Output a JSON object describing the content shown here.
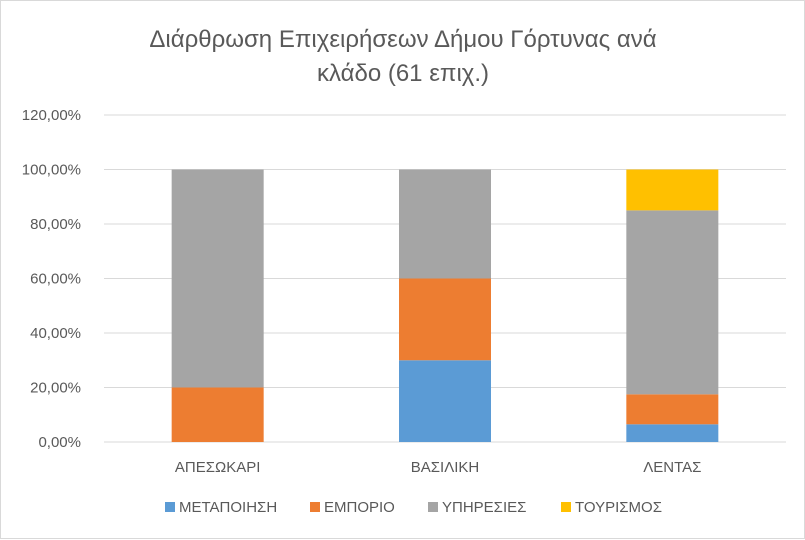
{
  "chart_data": {
    "type": "bar",
    "stacked": true,
    "title_lines": [
      "Διάρθρωση Επιχειρήσεων Δήμου Γόρτυνας ανά",
      "κλάδο (61 επιχ.)"
    ],
    "categories": [
      "ΑΠΕΣΩΚΑΡΙ",
      "ΒΑΣΙΛΙΚΗ",
      "ΛΕΝΤΑΣ"
    ],
    "series": [
      {
        "name": "ΜΕΤΑΠΟΙΗΣΗ",
        "color": "#5b9bd5",
        "values": [
          0,
          30,
          6.5
        ]
      },
      {
        "name": "ΕΜΠΟΡΙΟ",
        "color": "#ed7d31",
        "values": [
          20,
          30,
          11
        ]
      },
      {
        "name": "ΥΠΗΡΕΣΙΕΣ",
        "color": "#a5a5a5",
        "values": [
          80,
          40,
          67.5
        ]
      },
      {
        "name": "ΤΟΥΡΙΣΜΟΣ",
        "color": "#ffc000",
        "values": [
          0,
          0,
          15
        ]
      }
    ],
    "y_ticks": [
      "0,00%",
      "20,00%",
      "40,00%",
      "60,00%",
      "80,00%",
      "100,00%",
      "120,00%"
    ],
    "ylim": [
      0,
      120
    ],
    "grid": true,
    "legend_position": "bottom"
  }
}
